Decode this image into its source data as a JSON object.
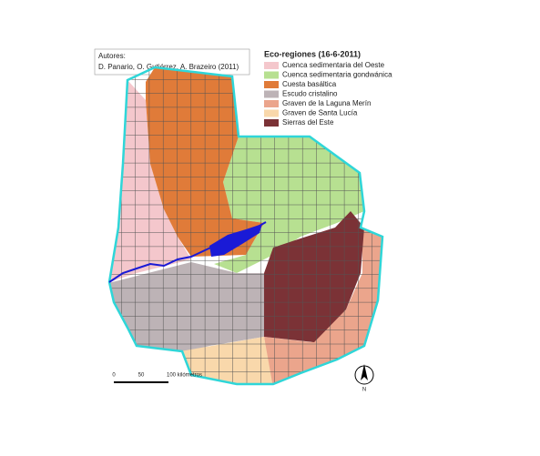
{
  "authors": {
    "heading": "Autores:",
    "names": "D. Panario, O. Gutiérrez,  A. Brazeiro  (2011)"
  },
  "legend": {
    "title": "Eco-regiones (16-6-2011)",
    "items": [
      {
        "label": "Cuenca sedimentaria del Oeste",
        "color": "#f4c7cc"
      },
      {
        "label": "Cuenca sedimentaria gondwánica",
        "color": "#b7e091"
      },
      {
        "label": "Cuesta basáltica",
        "color": "#e07b39"
      },
      {
        "label": "Escudo cristalino",
        "color": "#bdb3b6"
      },
      {
        "label": "Graven de la Laguna Merín",
        "color": "#eba58c"
      },
      {
        "label": "Graven de Santa Lucía",
        "color": "#f9d8ab"
      },
      {
        "label": "Sierras del Este",
        "color": "#7b3236"
      }
    ]
  },
  "scale_bar": {
    "labels": [
      "0",
      "50",
      "100 kilómetros"
    ]
  },
  "north_arrow": {
    "label": "N"
  }
}
